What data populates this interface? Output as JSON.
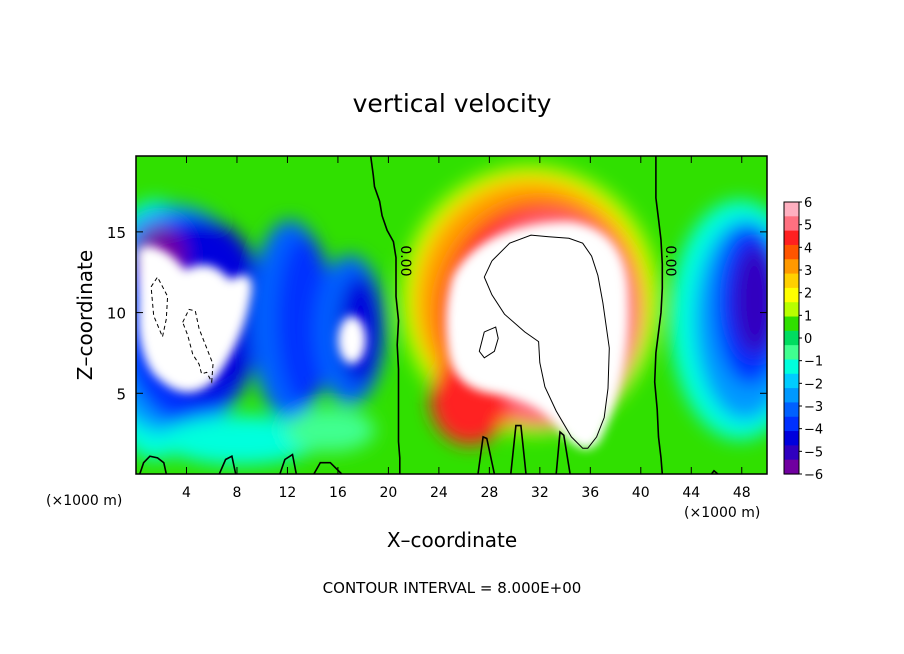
{
  "chart_data": {
    "type": "heatmap",
    "title": "vertical velocity",
    "xlabel": "X–coordinate",
    "ylabel": "Z–coordinate",
    "x_unit_left": "(×1000 m)",
    "x_unit_right": "(×1000 m)",
    "footer": "CONTOUR INTERVAL = 8.000E+00",
    "xlim": [
      0,
      50
    ],
    "ylim": [
      0,
      19.7
    ],
    "x_ticks": [
      4,
      8,
      12,
      16,
      20,
      24,
      28,
      32,
      36,
      40,
      44,
      48
    ],
    "x_tick_labels": [
      "4",
      "8",
      "12",
      "16",
      "20",
      "24",
      "28",
      "32",
      "36",
      "40",
      "44",
      "48"
    ],
    "y_ticks": [
      5,
      10,
      15
    ],
    "y_tick_labels": [
      "5",
      "10",
      "15"
    ],
    "colorbar": {
      "min": -6,
      "max": 6,
      "tick_values": [
        6,
        5,
        4,
        3,
        2,
        1,
        0,
        -1,
        -2,
        -3,
        -4,
        -5,
        -6
      ],
      "tick_labels": [
        "6",
        "5",
        "4",
        "3",
        "2",
        "1",
        "0",
        "−1",
        "−2",
        "−3",
        "−4",
        "−5",
        "−6"
      ],
      "colors": [
        "#ffb0c0",
        "#ff7080",
        "#ff2020",
        "#ff5500",
        "#ff9900",
        "#ffd000",
        "#ffff00",
        "#b8ff00",
        "#30e000",
        "#00dd60",
        "#40ff90",
        "#00ffdd",
        "#00ccff",
        "#0099ff",
        "#0060ff",
        "#0030ff",
        "#0000dd",
        "#3000c0",
        "#7000a0"
      ]
    },
    "contour_labels": [
      {
        "text": "0.00",
        "x": 21,
        "y": 13.2
      },
      {
        "text": "0.00",
        "x": 42,
        "y": 13.2
      }
    ],
    "zero_contours": [
      {
        "x": [
          18.6,
          18.8,
          18.9,
          19.3,
          19.5,
          19.9,
          20.4,
          20.6,
          20.6,
          20.6,
          20.8,
          20.7,
          20.8,
          20.8,
          20.8,
          20.8,
          20.9,
          20.9
        ],
        "z": [
          19.7,
          18.5,
          17.8,
          16.9,
          16.0,
          15.1,
          14.4,
          13.4,
          12.4,
          11.0,
          9.5,
          8.0,
          6.5,
          5.0,
          3.5,
          2.0,
          1.0,
          0.0
        ]
      },
      {
        "x": [
          41.2,
          41.2,
          41.2,
          41.4,
          41.6,
          41.7,
          41.7,
          41.6,
          41.2,
          41.1,
          41.3,
          41.4,
          41.6,
          41.7
        ],
        "z": [
          19.7,
          18.4,
          17.1,
          15.8,
          14.5,
          13.0,
          11.5,
          10.0,
          7.5,
          5.7,
          4.0,
          2.3,
          1.0,
          0.0
        ]
      }
    ],
    "positive_contours": [
      {
        "x": [
          28.2,
          29.6,
          31.3,
          32.7,
          34.3,
          35.4,
          36.1,
          36.6,
          37.0,
          37.5,
          37.4,
          37.1,
          36.5,
          35.8,
          35.4,
          34.5,
          33.3,
          32.4,
          32.0,
          31.9,
          30.8,
          29.2,
          28.2,
          27.6,
          28.2
        ],
        "z": [
          13.2,
          14.3,
          14.8,
          14.7,
          14.6,
          14.3,
          13.5,
          12.3,
          10.6,
          7.8,
          5.3,
          3.5,
          2.3,
          1.6,
          1.6,
          2.3,
          3.9,
          5.4,
          6.9,
          8.2,
          8.8,
          9.9,
          11.1,
          12.2,
          13.2
        ]
      },
      {
        "x": [
          27.6,
          28.5,
          28.7,
          28.4,
          27.6,
          27.2,
          27.6
        ],
        "z": [
          8.8,
          9.1,
          8.4,
          7.6,
          7.2,
          7.6,
          8.8
        ]
      }
    ],
    "negative_contours": [
      {
        "x": [
          1.2,
          1.7,
          2.5,
          2.4,
          2.1,
          1.4,
          1.2
        ],
        "z": [
          11.6,
          12.2,
          11.0,
          9.6,
          8.5,
          9.8,
          11.6
        ]
      },
      {
        "x": [
          3.7,
          4.2,
          4.7,
          5.0,
          5.6,
          6.1,
          6.0,
          5.6,
          5.2,
          5.0,
          4.5,
          4.1,
          3.7
        ],
        "z": [
          9.4,
          10.2,
          10.1,
          9.0,
          7.8,
          6.8,
          5.7,
          6.3,
          6.2,
          6.8,
          7.4,
          8.6,
          9.4
        ]
      }
    ],
    "bottom_contours": [
      {
        "x": [
          0.3,
          0.6,
          1.1,
          1.7,
          2.2,
          2.4
        ],
        "z": [
          0.0,
          0.7,
          1.1,
          1.0,
          0.7,
          0.0
        ]
      },
      {
        "x": [
          6.6,
          7.1,
          7.6,
          7.9
        ],
        "z": [
          0.0,
          0.9,
          1.1,
          0.0
        ]
      },
      {
        "x": [
          11.4,
          11.8,
          12.4,
          12.7
        ],
        "z": [
          0.0,
          0.9,
          1.2,
          0.0
        ]
      },
      {
        "x": [
          14.1,
          14.6,
          15.4,
          16.3
        ],
        "z": [
          0.0,
          0.7,
          0.7,
          0.0
        ]
      },
      {
        "x": [
          27.1,
          27.5,
          27.8,
          28.4
        ],
        "z": [
          0.0,
          2.3,
          2.2,
          0.0
        ]
      },
      {
        "x": [
          29.7,
          30.1,
          30.5,
          30.9
        ],
        "z": [
          0.0,
          3.0,
          3.0,
          0.0
        ]
      },
      {
        "x": [
          33.3,
          33.6,
          33.9,
          34.4
        ],
        "z": [
          0.0,
          2.6,
          2.4,
          0.0
        ]
      },
      {
        "x": [
          45.6,
          45.8,
          46.1
        ],
        "z": [
          0.0,
          0.2,
          0.0
        ]
      }
    ]
  }
}
